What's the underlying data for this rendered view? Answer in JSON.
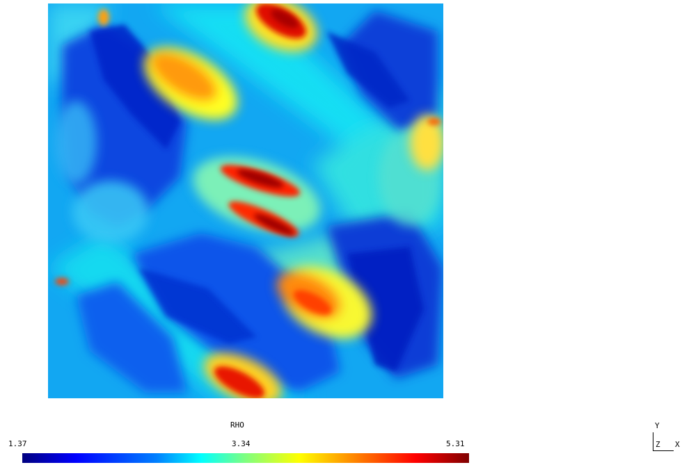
{
  "plot": {
    "variable": "RHO",
    "colormap": "jet",
    "colorbar": {
      "min": "1.37",
      "mid": "3.34",
      "max": "5.31"
    },
    "colors": [
      "#00007f",
      "#0000ff",
      "#007fff",
      "#00ffff",
      "#7fff7f",
      "#ffff00",
      "#ff7f00",
      "#ff0000",
      "#7f0000"
    ]
  },
  "axes_triad": {
    "y": "Y",
    "z": "Z",
    "x": "X"
  }
}
